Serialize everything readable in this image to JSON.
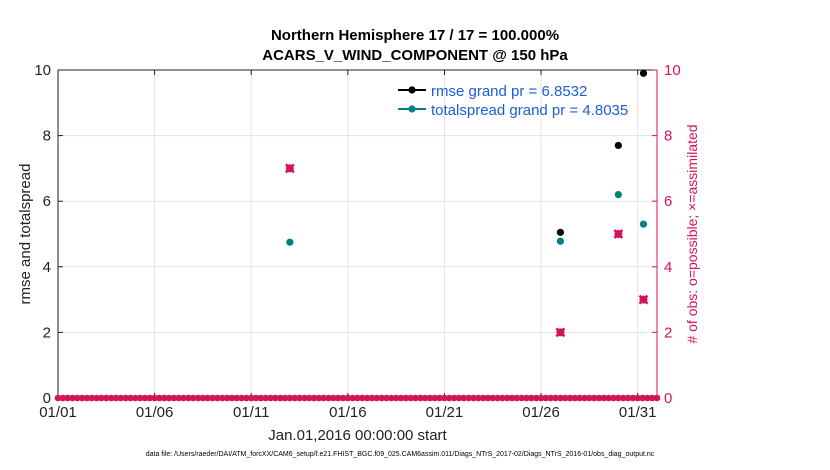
{
  "chart_data": {
    "type": "scatter",
    "title_line1": "Northern Hemisphere 17 / 17 = 100.000%",
    "title_line2": "ACARS_V_WIND_COMPONENT @ 150 hPa",
    "xlabel": "Jan.01,2016 00:00:00 start",
    "ylabel_left": "rmse and totalspread",
    "ylabel_right": "# of obs: o=possible; ×=assimilated",
    "xlim": [
      1,
      32
    ],
    "ylim_left": [
      0,
      10
    ],
    "ylim_right": [
      0,
      10
    ],
    "x_ticks": [
      1,
      6,
      11,
      16,
      21,
      26,
      31
    ],
    "x_tick_labels": [
      "01/01",
      "01/06",
      "01/11",
      "01/16",
      "01/21",
      "01/26",
      "01/31"
    ],
    "y_ticks_left": [
      "0",
      "2",
      "4",
      "6",
      "8",
      "10"
    ],
    "y_ticks_right": [
      "0",
      "2",
      "4",
      "6",
      "8",
      "10"
    ],
    "grid": true,
    "legend_position": "top-right",
    "series": [
      {
        "name": "rmse grand pr = 6.8532",
        "color": "#000000",
        "axis": "left",
        "points": [
          [
            27,
            5.05
          ],
          [
            30,
            7.7
          ],
          [
            31.3,
            9.9
          ]
        ]
      },
      {
        "name": "totalspread grand pr = 4.8035",
        "color": "#00807f",
        "axis": "left",
        "points": [
          [
            13,
            4.75
          ],
          [
            27,
            4.78
          ],
          [
            30,
            6.2
          ],
          [
            31.3,
            5.3
          ]
        ]
      },
      {
        "name": "obs possible",
        "color": "#d4145a",
        "axis": "right",
        "marker": "o",
        "points": [
          [
            13,
            7
          ],
          [
            27,
            2
          ],
          [
            30,
            5
          ],
          [
            31.3,
            3
          ]
        ]
      },
      {
        "name": "obs assimilated",
        "color": "#d4145a",
        "axis": "right",
        "marker": "x",
        "points": [
          [
            13,
            7
          ],
          [
            27,
            2
          ],
          [
            30,
            5
          ],
          [
            31.3,
            3
          ]
        ]
      }
    ],
    "zero_row": {
      "color": "#d4145a",
      "x_start": 1,
      "x_step": 0.25,
      "count": 125
    }
  },
  "footer": "data file: /Users/raeder/DAI/ATM_forcXX/CAM6_setup/f.e21.FHIST_BGC.f09_025.CAM6assim.011/Diags_NTrS_2017-02/Diags_NTrS_2016-01/obs_diag_output.nc"
}
